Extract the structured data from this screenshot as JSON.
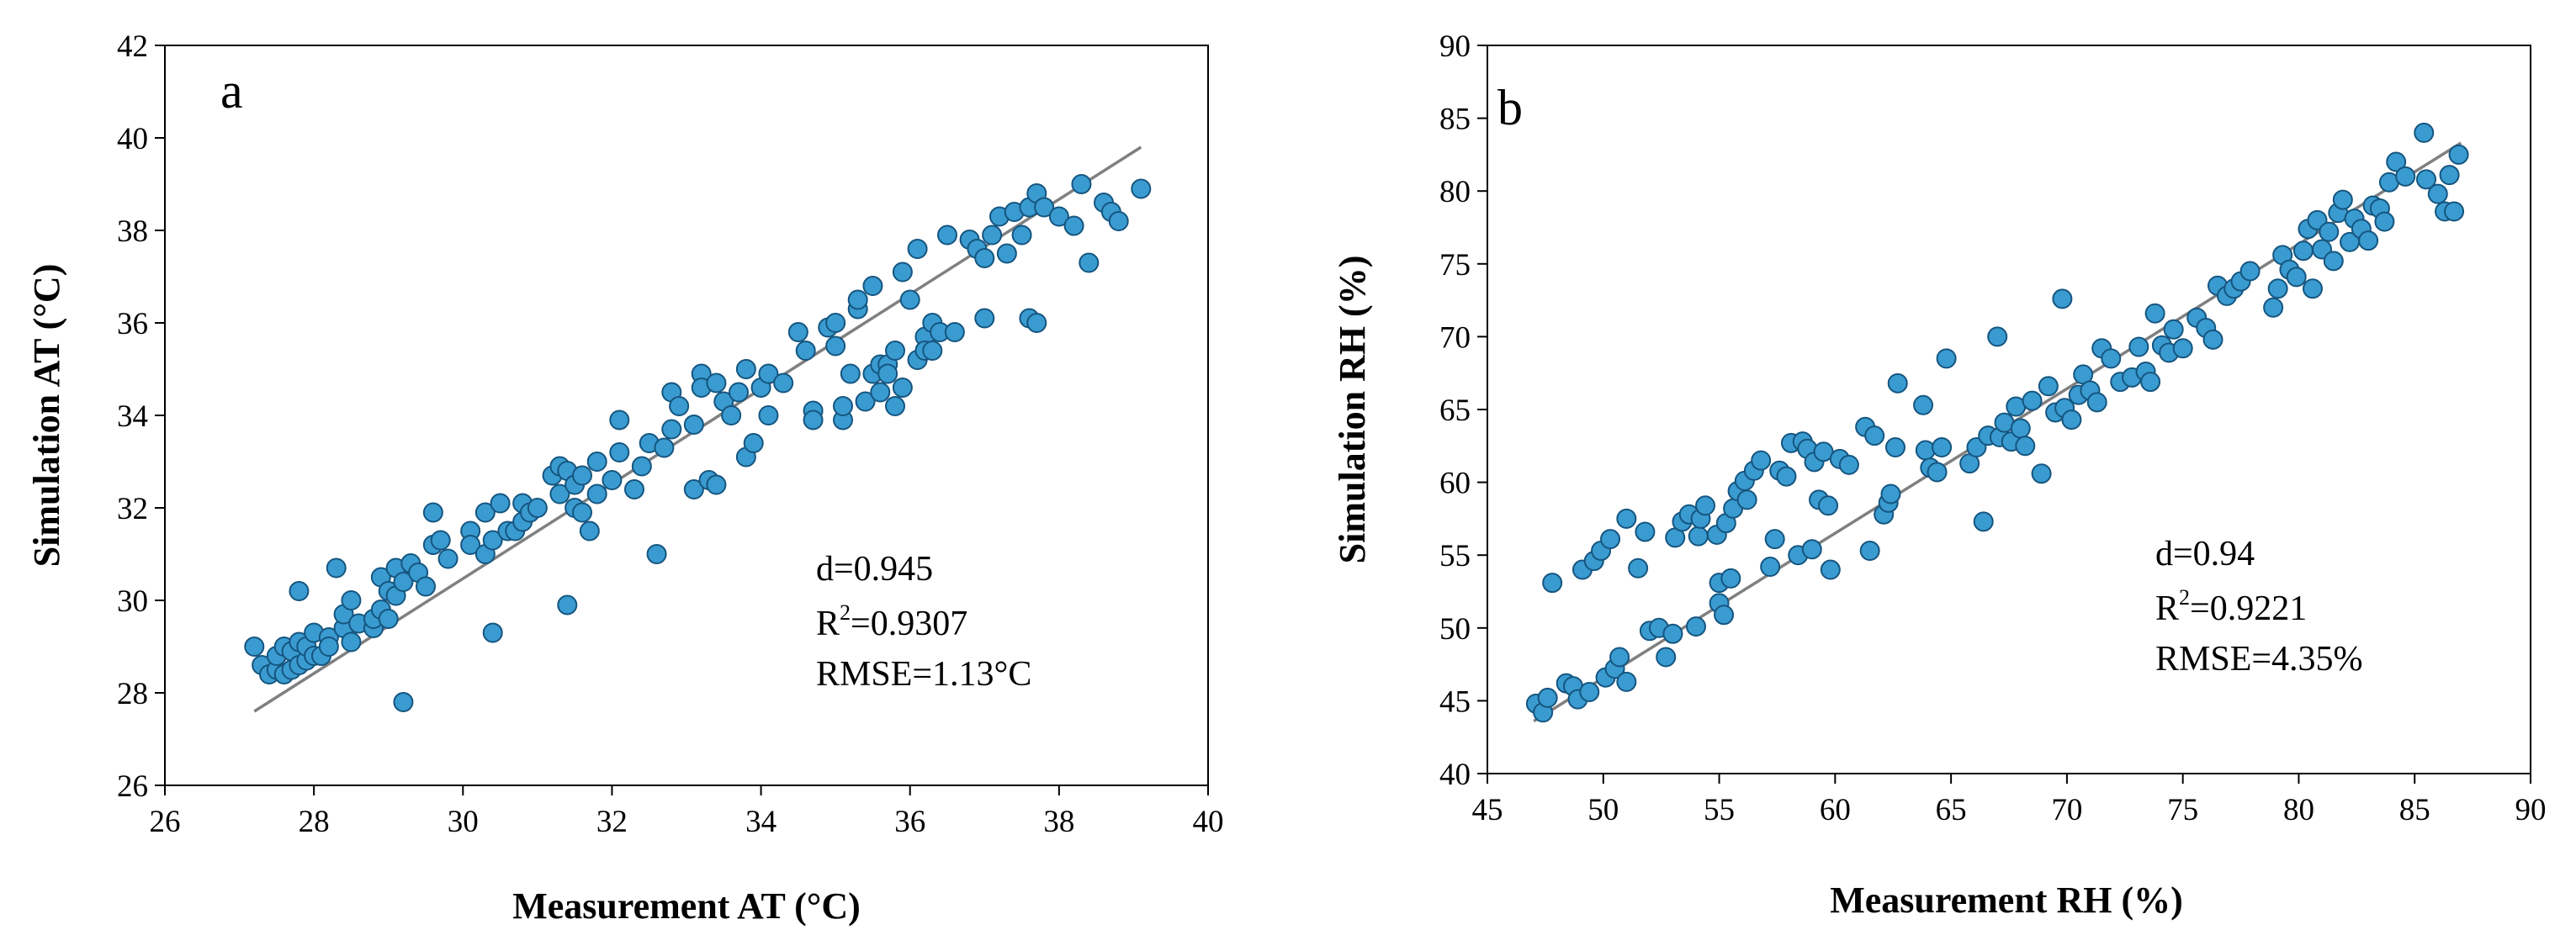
{
  "panels": [
    {
      "id": "a",
      "panel_label": "a",
      "stats": {
        "d": "d=0.945",
        "r2_prefix": "R",
        "r2_sup": "2",
        "r2_value": "=0.9307",
        "rmse": "RMSE=1.13°C"
      }
    },
    {
      "id": "b",
      "panel_label": "b",
      "stats": {
        "d": "d=0.94",
        "r2_prefix": "R",
        "r2_sup": "2",
        "r2_value": "=0.9221",
        "rmse": "RMSE=4.35%"
      }
    }
  ],
  "colors": {
    "marker_fill": "#3a9bd0",
    "marker_stroke": "#15557f",
    "fit_line": "#808080",
    "axes": "#000000"
  },
  "chart_data": [
    {
      "type": "scatter",
      "xlabel": "Measurement AT (°C)",
      "ylabel": "Simulation AT (°C)",
      "xlim": [
        26,
        40
      ],
      "ylim": [
        26,
        42
      ],
      "xticks": [
        26,
        28,
        30,
        32,
        34,
        36,
        38,
        40
      ],
      "yticks": [
        26,
        28,
        30,
        32,
        34,
        36,
        38,
        40,
        42
      ],
      "fit_line": {
        "x": [
          27.2,
          39.1
        ],
        "y": [
          27.6,
          39.8
        ]
      },
      "points": [
        [
          27.2,
          29.0
        ],
        [
          27.3,
          28.6
        ],
        [
          27.4,
          28.4
        ],
        [
          27.5,
          28.5
        ],
        [
          27.5,
          28.8
        ],
        [
          27.6,
          29.0
        ],
        [
          27.6,
          28.4
        ],
        [
          27.7,
          28.9
        ],
        [
          27.7,
          28.5
        ],
        [
          27.8,
          28.6
        ],
        [
          27.8,
          29.1
        ],
        [
          27.8,
          30.2
        ],
        [
          27.9,
          28.7
        ],
        [
          27.9,
          29.0
        ],
        [
          28.0,
          28.8
        ],
        [
          28.0,
          29.3
        ],
        [
          28.1,
          28.8
        ],
        [
          28.2,
          29.2
        ],
        [
          28.2,
          29.0
        ],
        [
          28.3,
          30.7
        ],
        [
          28.4,
          29.4
        ],
        [
          28.4,
          29.7
        ],
        [
          28.5,
          29.1
        ],
        [
          28.5,
          30.0
        ],
        [
          28.6,
          29.5
        ],
        [
          28.8,
          29.4
        ],
        [
          28.8,
          29.6
        ],
        [
          28.9,
          29.8
        ],
        [
          28.9,
          30.5
        ],
        [
          29.0,
          30.2
        ],
        [
          29.0,
          29.6
        ],
        [
          29.1,
          30.1
        ],
        [
          29.1,
          30.7
        ],
        [
          29.2,
          30.4
        ],
        [
          29.2,
          27.8
        ],
        [
          29.3,
          30.8
        ],
        [
          29.4,
          30.6
        ],
        [
          29.5,
          30.3
        ],
        [
          29.6,
          31.2
        ],
        [
          29.6,
          31.9
        ],
        [
          29.7,
          31.3
        ],
        [
          29.8,
          30.9
        ],
        [
          30.1,
          31.5
        ],
        [
          30.1,
          31.2
        ],
        [
          30.3,
          31.9
        ],
        [
          30.3,
          31.0
        ],
        [
          30.4,
          29.3
        ],
        [
          30.4,
          31.3
        ],
        [
          30.5,
          32.1
        ],
        [
          30.6,
          31.5
        ],
        [
          30.7,
          31.5
        ],
        [
          30.8,
          31.7
        ],
        [
          30.8,
          32.1
        ],
        [
          30.9,
          31.9
        ],
        [
          31.0,
          32.0
        ],
        [
          31.2,
          32.7
        ],
        [
          31.3,
          32.9
        ],
        [
          31.3,
          32.3
        ],
        [
          31.4,
          29.9
        ],
        [
          31.4,
          32.8
        ],
        [
          31.5,
          32.5
        ],
        [
          31.5,
          32.0
        ],
        [
          31.6,
          32.7
        ],
        [
          31.6,
          31.9
        ],
        [
          31.7,
          31.5
        ],
        [
          31.8,
          33.0
        ],
        [
          31.8,
          32.3
        ],
        [
          32.0,
          32.6
        ],
        [
          32.1,
          33.2
        ],
        [
          32.1,
          33.9
        ],
        [
          32.3,
          32.4
        ],
        [
          32.4,
          32.9
        ],
        [
          32.5,
          33.4
        ],
        [
          32.6,
          31.0
        ],
        [
          32.7,
          33.3
        ],
        [
          32.8,
          33.7
        ],
        [
          32.8,
          34.5
        ],
        [
          32.9,
          34.2
        ],
        [
          33.1,
          32.4
        ],
        [
          33.1,
          33.8
        ],
        [
          33.2,
          34.9
        ],
        [
          33.2,
          34.6
        ],
        [
          33.3,
          32.6
        ],
        [
          33.4,
          32.5
        ],
        [
          33.4,
          34.7
        ],
        [
          33.5,
          34.3
        ],
        [
          33.6,
          34.0
        ],
        [
          33.7,
          34.5
        ],
        [
          33.8,
          33.1
        ],
        [
          33.8,
          35.0
        ],
        [
          33.9,
          33.4
        ],
        [
          34.0,
          34.6
        ],
        [
          34.1,
          34.0
        ],
        [
          34.1,
          34.9
        ],
        [
          34.3,
          34.7
        ],
        [
          34.5,
          35.8
        ],
        [
          34.6,
          35.4
        ],
        [
          34.7,
          34.1
        ],
        [
          34.7,
          33.9
        ],
        [
          34.9,
          35.9
        ],
        [
          35.0,
          35.5
        ],
        [
          35.0,
          36.0
        ],
        [
          35.1,
          33.9
        ],
        [
          35.1,
          34.2
        ],
        [
          35.2,
          34.9
        ],
        [
          35.3,
          36.3
        ],
        [
          35.3,
          36.5
        ],
        [
          35.4,
          34.3
        ],
        [
          35.5,
          34.9
        ],
        [
          35.5,
          36.8
        ],
        [
          35.6,
          35.1
        ],
        [
          35.6,
          34.5
        ],
        [
          35.7,
          35.1
        ],
        [
          35.7,
          34.9
        ],
        [
          35.8,
          35.4
        ],
        [
          35.8,
          34.2
        ],
        [
          35.9,
          34.6
        ],
        [
          35.9,
          37.1
        ],
        [
          36.0,
          36.5
        ],
        [
          36.1,
          35.2
        ],
        [
          36.1,
          37.6
        ],
        [
          36.2,
          35.7
        ],
        [
          36.2,
          35.4
        ],
        [
          36.3,
          36.0
        ],
        [
          36.3,
          35.4
        ],
        [
          36.4,
          35.8
        ],
        [
          36.5,
          37.9
        ],
        [
          36.6,
          35.8
        ],
        [
          36.8,
          37.8
        ],
        [
          36.9,
          37.6
        ],
        [
          37.0,
          37.4
        ],
        [
          37.0,
          36.1
        ],
        [
          37.1,
          37.9
        ],
        [
          37.2,
          38.3
        ],
        [
          37.3,
          37.5
        ],
        [
          37.4,
          38.4
        ],
        [
          37.5,
          37.9
        ],
        [
          37.6,
          38.5
        ],
        [
          37.6,
          36.1
        ],
        [
          37.7,
          38.8
        ],
        [
          37.7,
          36.0
        ],
        [
          37.8,
          38.5
        ],
        [
          38.0,
          38.3
        ],
        [
          38.2,
          38.1
        ],
        [
          38.3,
          39.0
        ],
        [
          38.4,
          37.3
        ],
        [
          38.6,
          38.6
        ],
        [
          38.7,
          38.4
        ],
        [
          38.8,
          38.2
        ],
        [
          39.1,
          38.9
        ]
      ]
    },
    {
      "type": "scatter",
      "xlabel": "Measurement RH (%)",
      "ylabel": "Simulation RH (%)",
      "xlim": [
        45,
        90
      ],
      "ylim": [
        40,
        90
      ],
      "xticks": [
        45,
        50,
        55,
        60,
        65,
        70,
        75,
        80,
        85,
        90
      ],
      "yticks": [
        40,
        45,
        50,
        55,
        60,
        65,
        70,
        75,
        80,
        85,
        90
      ],
      "fit_line": {
        "x": [
          47.0,
          87.0
        ],
        "y": [
          43.6,
          83.3
        ]
      },
      "points": [
        [
          47.1,
          44.8
        ],
        [
          47.4,
          44.2
        ],
        [
          47.6,
          45.2
        ],
        [
          47.8,
          53.1
        ],
        [
          48.4,
          46.2
        ],
        [
          48.7,
          46.0
        ],
        [
          48.9,
          45.1
        ],
        [
          49.1,
          54.0
        ],
        [
          49.4,
          45.6
        ],
        [
          49.6,
          54.6
        ],
        [
          49.9,
          55.3
        ],
        [
          50.1,
          46.6
        ],
        [
          50.3,
          56.1
        ],
        [
          50.5,
          47.2
        ],
        [
          50.7,
          48.0
        ],
        [
          51.0,
          57.5
        ],
        [
          51.0,
          46.3
        ],
        [
          51.5,
          54.1
        ],
        [
          51.8,
          56.6
        ],
        [
          52.0,
          49.8
        ],
        [
          52.4,
          50.0
        ],
        [
          52.7,
          48.0
        ],
        [
          53.0,
          49.6
        ],
        [
          53.1,
          56.2
        ],
        [
          53.4,
          57.3
        ],
        [
          53.7,
          57.8
        ],
        [
          54.0,
          50.1
        ],
        [
          54.1,
          56.3
        ],
        [
          54.2,
          57.5
        ],
        [
          54.4,
          58.4
        ],
        [
          54.9,
          56.4
        ],
        [
          55.0,
          51.7
        ],
        [
          55.0,
          53.1
        ],
        [
          55.2,
          50.9
        ],
        [
          55.3,
          57.2
        ],
        [
          55.5,
          53.4
        ],
        [
          55.6,
          58.2
        ],
        [
          55.8,
          59.4
        ],
        [
          56.1,
          60.1
        ],
        [
          56.2,
          58.8
        ],
        [
          56.5,
          60.8
        ],
        [
          56.8,
          61.5
        ],
        [
          57.2,
          54.2
        ],
        [
          57.4,
          56.1
        ],
        [
          57.6,
          60.8
        ],
        [
          57.9,
          60.4
        ],
        [
          58.1,
          62.7
        ],
        [
          58.4,
          55.0
        ],
        [
          58.6,
          62.8
        ],
        [
          58.8,
          62.3
        ],
        [
          59.0,
          55.4
        ],
        [
          59.1,
          61.4
        ],
        [
          59.3,
          58.8
        ],
        [
          59.5,
          62.1
        ],
        [
          59.7,
          58.4
        ],
        [
          59.8,
          54.0
        ],
        [
          60.2,
          61.6
        ],
        [
          60.6,
          61.2
        ],
        [
          61.3,
          63.8
        ],
        [
          61.7,
          63.2
        ],
        [
          61.5,
          55.3
        ],
        [
          62.1,
          57.8
        ],
        [
          62.3,
          58.6
        ],
        [
          62.6,
          62.4
        ],
        [
          62.7,
          66.8
        ],
        [
          62.4,
          59.2
        ],
        [
          63.8,
          65.3
        ],
        [
          63.9,
          62.2
        ],
        [
          64.1,
          61.0
        ],
        [
          64.4,
          60.7
        ],
        [
          64.6,
          62.4
        ],
        [
          64.8,
          68.5
        ],
        [
          65.8,
          61.3
        ],
        [
          66.1,
          62.4
        ],
        [
          66.4,
          57.3
        ],
        [
          66.6,
          63.2
        ],
        [
          67.0,
          70.0
        ],
        [
          67.1,
          63.1
        ],
        [
          67.3,
          64.1
        ],
        [
          67.6,
          62.8
        ],
        [
          67.8,
          65.2
        ],
        [
          68.0,
          63.7
        ],
        [
          68.2,
          62.5
        ],
        [
          68.5,
          65.6
        ],
        [
          68.9,
          60.6
        ],
        [
          69.2,
          66.6
        ],
        [
          69.5,
          64.8
        ],
        [
          69.8,
          72.6
        ],
        [
          69.9,
          65.1
        ],
        [
          70.2,
          64.3
        ],
        [
          70.5,
          66.0
        ],
        [
          70.7,
          67.4
        ],
        [
          71.0,
          66.3
        ],
        [
          71.3,
          65.5
        ],
        [
          71.5,
          69.2
        ],
        [
          71.9,
          68.5
        ],
        [
          72.3,
          66.9
        ],
        [
          72.8,
          67.2
        ],
        [
          73.1,
          69.3
        ],
        [
          73.4,
          67.6
        ],
        [
          73.6,
          66.9
        ],
        [
          73.8,
          71.6
        ],
        [
          74.1,
          69.4
        ],
        [
          74.4,
          68.9
        ],
        [
          74.6,
          70.5
        ],
        [
          75.0,
          69.2
        ],
        [
          75.6,
          71.3
        ],
        [
          76.0,
          70.6
        ],
        [
          76.3,
          69.8
        ],
        [
          76.5,
          73.5
        ],
        [
          76.9,
          72.8
        ],
        [
          77.2,
          73.3
        ],
        [
          77.5,
          73.8
        ],
        [
          77.9,
          74.5
        ],
        [
          78.9,
          72.0
        ],
        [
          79.1,
          73.3
        ],
        [
          79.3,
          75.6
        ],
        [
          79.6,
          74.6
        ],
        [
          79.9,
          74.1
        ],
        [
          80.2,
          75.9
        ],
        [
          80.4,
          77.4
        ],
        [
          80.6,
          73.3
        ],
        [
          80.8,
          78.0
        ],
        [
          81.0,
          76.0
        ],
        [
          81.3,
          77.2
        ],
        [
          81.5,
          75.2
        ],
        [
          81.7,
          78.5
        ],
        [
          81.9,
          79.4
        ],
        [
          82.2,
          76.5
        ],
        [
          82.4,
          78.1
        ],
        [
          82.7,
          77.4
        ],
        [
          83.0,
          76.6
        ],
        [
          83.2,
          79.0
        ],
        [
          83.5,
          78.8
        ],
        [
          83.7,
          77.9
        ],
        [
          83.9,
          80.6
        ],
        [
          84.2,
          82.0
        ],
        [
          84.6,
          81.0
        ],
        [
          85.4,
          84.0
        ],
        [
          85.5,
          80.8
        ],
        [
          86.0,
          79.8
        ],
        [
          86.3,
          78.6
        ],
        [
          86.5,
          81.1
        ],
        [
          86.7,
          78.6
        ],
        [
          86.9,
          82.5
        ]
      ]
    }
  ]
}
